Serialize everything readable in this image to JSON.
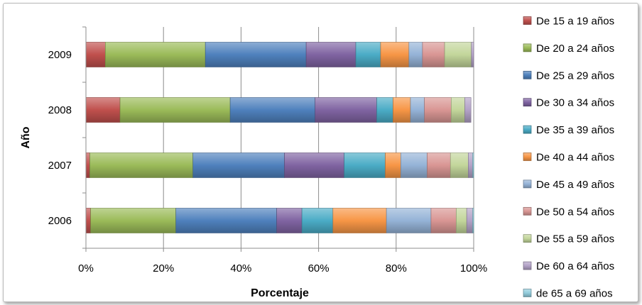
{
  "chart_data": {
    "type": "bar",
    "orientation": "horizontal",
    "stacked": "percent",
    "xlabel": "Porcentaje",
    "ylabel": "Año",
    "xlim": [
      0,
      100
    ],
    "x_ticks": [
      "0%",
      "20%",
      "40%",
      "60%",
      "80%",
      "100%"
    ],
    "categories": [
      "2009",
      "2008",
      "2007",
      "2006"
    ],
    "grid": true,
    "legend_position": "right",
    "series": [
      {
        "name": "De 15 a 19 años",
        "color": "#c0504d",
        "values": [
          5.0,
          8.8,
          1.0,
          1.2
        ]
      },
      {
        "name": "De 20 a 24 años",
        "color": "#9bbb59",
        "values": [
          25.8,
          28.4,
          26.6,
          22.0
        ]
      },
      {
        "name": "De 25 a 29 años",
        "color": "#4f81bd",
        "values": [
          26.0,
          21.9,
          23.6,
          26.0
        ]
      },
      {
        "name": "De 30 a 34 años",
        "color": "#8064a2",
        "values": [
          12.8,
          15.9,
          15.4,
          6.5
        ]
      },
      {
        "name": "De 35 a 39 años",
        "color": "#4bacc6",
        "values": [
          6.4,
          4.2,
          10.6,
          8.0
        ]
      },
      {
        "name": "De 40 a 44 años",
        "color": "#f79646",
        "values": [
          7.3,
          4.5,
          4.0,
          13.8
        ]
      },
      {
        "name": "De 45 a 49 años",
        "color": "#95b3d7",
        "values": [
          3.5,
          3.6,
          6.8,
          11.5
        ]
      },
      {
        "name": "De 50 a 54 años",
        "color": "#d99694",
        "values": [
          5.7,
          6.9,
          6.0,
          6.5
        ]
      },
      {
        "name": "De 55 a 59 años",
        "color": "#c3d69b",
        "values": [
          6.9,
          3.5,
          4.6,
          2.7
        ]
      },
      {
        "name": "De 60 a 64 años",
        "color": "#b3a2c7",
        "values": [
          0.6,
          1.6,
          1.1,
          1.5
        ]
      },
      {
        "name": "de 65 a 69 años",
        "color": "#93cddd",
        "values": [
          0.0,
          0.0,
          0.3,
          0.3
        ]
      }
    ]
  }
}
